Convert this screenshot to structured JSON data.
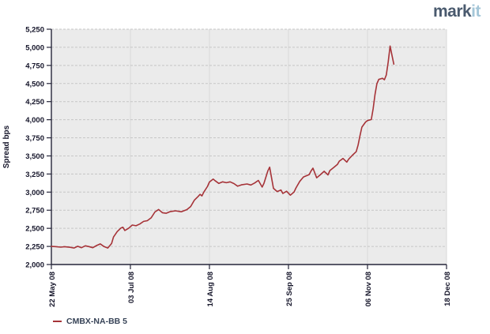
{
  "logo": {
    "part1": "mark",
    "part2": "it"
  },
  "legend": {
    "series_label": "CMBX-NA-BB 5"
  },
  "colors": {
    "page_bg": "#ffffff",
    "plot_bg": "#ebebeb",
    "grid_horizontal": "#c6c6c6",
    "grid_vertical": "#d8d8d8",
    "axis": "#26263a",
    "tick_label": "#15152a",
    "axis_title": "#15152a",
    "series_line": "#a63338",
    "legend_text": "#374357",
    "logo_mark": "#4a5a6e",
    "logo_it": "#a4c6d8"
  },
  "chart_data": {
    "type": "line",
    "title": "",
    "xlabel": "",
    "ylabel": "Spread bps",
    "ylim": [
      2000,
      5250
    ],
    "y_tick_step": 250,
    "y_ticks": [
      2000,
      2250,
      2500,
      2750,
      3000,
      3250,
      3500,
      3750,
      4000,
      4250,
      4500,
      4750,
      5000,
      5250
    ],
    "x_range_days": [
      0,
      210
    ],
    "x_ticks": [
      {
        "label": "22 May 08",
        "day": 0
      },
      {
        "label": "03 Jul 08",
        "day": 42
      },
      {
        "label": "14 Aug 08",
        "day": 84
      },
      {
        "label": "25 Sep 08",
        "day": 126
      },
      {
        "label": "06 Nov 08",
        "day": 168
      },
      {
        "label": "18 Dec 08",
        "day": 210
      }
    ],
    "grid": true,
    "legend_position": "bottom-left",
    "series": [
      {
        "name": "CMBX-NA-BB 5",
        "color": "#a63338",
        "points_day_value": [
          [
            0,
            2250
          ],
          [
            2,
            2248
          ],
          [
            5,
            2240
          ],
          [
            7,
            2246
          ],
          [
            10,
            2238
          ],
          [
            12,
            2228
          ],
          [
            14,
            2252
          ],
          [
            16,
            2232
          ],
          [
            18,
            2258
          ],
          [
            20,
            2248
          ],
          [
            22,
            2232
          ],
          [
            24,
            2262
          ],
          [
            26,
            2285
          ],
          [
            28,
            2248
          ],
          [
            30,
            2228
          ],
          [
            32,
            2290
          ],
          [
            33,
            2380
          ],
          [
            35,
            2455
          ],
          [
            37,
            2505
          ],
          [
            38,
            2515
          ],
          [
            39,
            2470
          ],
          [
            41,
            2500
          ],
          [
            43,
            2545
          ],
          [
            45,
            2535
          ],
          [
            47,
            2560
          ],
          [
            49,
            2595
          ],
          [
            51,
            2605
          ],
          [
            53,
            2645
          ],
          [
            55,
            2725
          ],
          [
            57,
            2760
          ],
          [
            59,
            2715
          ],
          [
            61,
            2708
          ],
          [
            63,
            2730
          ],
          [
            66,
            2742
          ],
          [
            69,
            2728
          ],
          [
            72,
            2758
          ],
          [
            74,
            2800
          ],
          [
            76,
            2890
          ],
          [
            78,
            2940
          ],
          [
            79,
            2970
          ],
          [
            80,
            2948
          ],
          [
            81,
            3000
          ],
          [
            83,
            3080
          ],
          [
            84,
            3140
          ],
          [
            86,
            3180
          ],
          [
            87,
            3158
          ],
          [
            89,
            3120
          ],
          [
            91,
            3142
          ],
          [
            93,
            3130
          ],
          [
            95,
            3142
          ],
          [
            97,
            3118
          ],
          [
            99,
            3082
          ],
          [
            101,
            3100
          ],
          [
            104,
            3112
          ],
          [
            106,
            3098
          ],
          [
            108,
            3125
          ],
          [
            110,
            3162
          ],
          [
            112,
            3070
          ],
          [
            113,
            3122
          ],
          [
            115,
            3290
          ],
          [
            116,
            3345
          ],
          [
            117,
            3198
          ],
          [
            118,
            3052
          ],
          [
            120,
            3008
          ],
          [
            122,
            3030
          ],
          [
            123,
            2982
          ],
          [
            125,
            3012
          ],
          [
            127,
            2958
          ],
          [
            129,
            3002
          ],
          [
            130,
            3058
          ],
          [
            132,
            3148
          ],
          [
            134,
            3210
          ],
          [
            137,
            3242
          ],
          [
            138,
            3292
          ],
          [
            139,
            3330
          ],
          [
            141,
            3198
          ],
          [
            143,
            3242
          ],
          [
            145,
            3288
          ],
          [
            147,
            3238
          ],
          [
            148,
            3298
          ],
          [
            150,
            3338
          ],
          [
            152,
            3382
          ],
          [
            153,
            3428
          ],
          [
            155,
            3465
          ],
          [
            157,
            3415
          ],
          [
            158,
            3455
          ],
          [
            160,
            3510
          ],
          [
            162,
            3558
          ],
          [
            163,
            3650
          ],
          [
            164,
            3780
          ],
          [
            165,
            3898
          ],
          [
            167,
            3968
          ],
          [
            168,
            3988
          ],
          [
            170,
            4002
          ],
          [
            171,
            4148
          ],
          [
            172,
            4348
          ],
          [
            173,
            4498
          ],
          [
            174,
            4558
          ],
          [
            176,
            4572
          ],
          [
            177,
            4552
          ],
          [
            178,
            4618
          ],
          [
            179,
            4798
          ],
          [
            180,
            5018
          ],
          [
            181,
            4888
          ],
          [
            182,
            4768
          ]
        ]
      }
    ]
  }
}
